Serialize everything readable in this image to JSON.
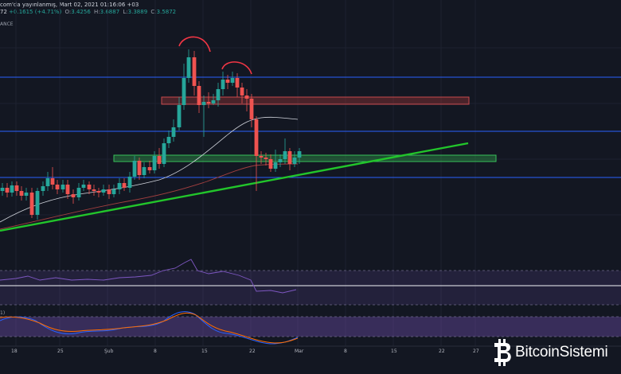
{
  "header": {
    "published_text": "com'da yayınlanmış, Mart 02, 2021 01:16:06 +03",
    "last_fragment": "72",
    "change": "+0.1615 (+4.71%)",
    "open_label": "O:",
    "open": "3.4256",
    "high_label": "H:",
    "high": "3.6887",
    "low_label": "L:",
    "low": "3.3889",
    "close_label": "C:",
    "close": "3.5872",
    "exchange_fragment": "ANCE"
  },
  "indicator_panel_tag": "1)",
  "time_axis": [
    "18",
    "25",
    "Şub",
    "8",
    "15",
    "22",
    "Mar",
    "8",
    "15",
    "22",
    "27"
  ],
  "brand": {
    "name": "BitcoinSistemi",
    "icon": "bitcoin-logo-icon"
  },
  "colors": {
    "background": "#131722",
    "up_candle": "#26a69a",
    "down_candle": "#ef5350",
    "trendline": "#22c52b",
    "horizontal_line": "#2962ff",
    "resistance_zone": "#b2383a",
    "support_zone": "#2fa34a",
    "head_shoulders_marker": "#f23645",
    "rsi_fill": "#7e57c2",
    "macd_fast": "#2962ff",
    "macd_slow": "#ff6d00"
  },
  "chart_data": {
    "type": "candlestick",
    "annotations": [
      "double-top arcs",
      "support zone",
      "resistance zone",
      "rising trendline",
      "three horizontal levels"
    ],
    "subpanels": [
      "RSI (purple band)",
      "Stochastic RSI (purple band)"
    ]
  }
}
